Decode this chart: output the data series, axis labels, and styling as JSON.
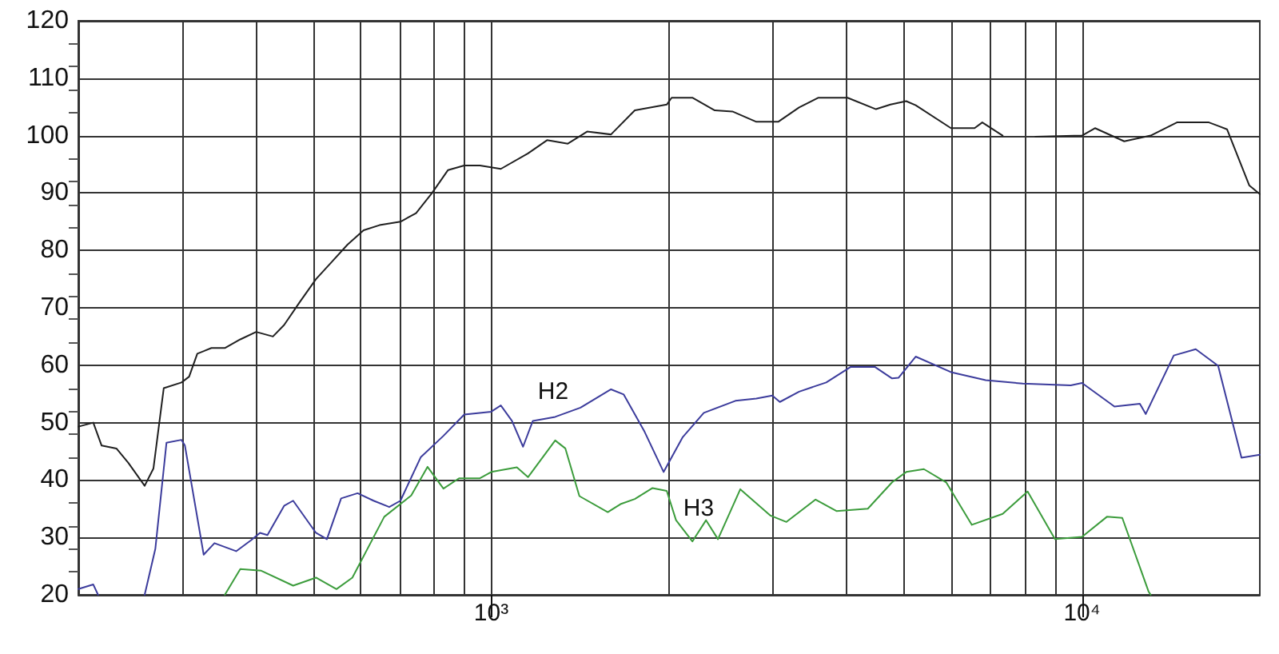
{
  "chart_data": {
    "type": "line",
    "log": "x",
    "grid": true,
    "marker": "none",
    "line_style": "solid",
    "xlim": [
      200,
      20000
    ],
    "ylim": [
      20,
      120
    ],
    "xticks": [
      {
        "value": 300,
        "label": null
      },
      {
        "value": 400,
        "label": null
      },
      {
        "value": 500,
        "label": null
      },
      {
        "value": 600,
        "label": null
      },
      {
        "value": 700,
        "label": null
      },
      {
        "value": 800,
        "label": null
      },
      {
        "value": 900,
        "label": null
      },
      {
        "value": 1000,
        "label": "10³"
      },
      {
        "value": 2000,
        "label": null
      },
      {
        "value": 3000,
        "label": null
      },
      {
        "value": 4000,
        "label": null
      },
      {
        "value": 5000,
        "label": null
      },
      {
        "value": 6000,
        "label": null
      },
      {
        "value": 7000,
        "label": null
      },
      {
        "value": 8000,
        "label": null
      },
      {
        "value": 9000,
        "label": null
      },
      {
        "value": 10000,
        "label": "10⁴"
      }
    ],
    "yticks": [
      20,
      30,
      40,
      50,
      60,
      70,
      80,
      90,
      100,
      110,
      120
    ],
    "annotations": [
      "H2",
      "H3"
    ],
    "series": [
      {
        "color": "#202020",
        "x": [
          200,
          212,
          219,
          232,
          243,
          259,
          268,
          279,
          299,
          308,
          318,
          336,
          354,
          376,
          400,
          427,
          446,
          474,
          505,
          537,
          571,
          608,
          647,
          702,
          746,
          794,
          845,
          900,
          957,
          1038,
          1154,
          1243,
          1348,
          1453,
          1595,
          1750,
          1982,
          2020,
          2190,
          2390,
          2560,
          2810,
          3060,
          3320,
          3580,
          4010,
          4480,
          4740,
          5040,
          5230,
          6000,
          6580,
          6780,
          7340,
          7800,
          8340,
          10000,
          10520,
          11790,
          13070,
          14480,
          16400,
          17600,
          19200,
          20000
        ],
        "values": [
          49.3,
          50,
          46,
          45.5,
          43,
          39,
          42,
          56,
          57,
          58,
          62,
          63,
          63,
          64.5,
          65.8,
          65,
          67,
          71,
          75,
          78,
          81,
          83.5,
          84.4,
          85,
          86.5,
          90,
          94,
          94.8,
          94.8,
          94.2,
          96.9,
          99.2,
          98.6,
          100.7,
          100.2,
          104.4,
          105.4,
          106.6,
          106.6,
          104.4,
          104.2,
          102.4,
          102.4,
          104.9,
          106.6,
          106.6,
          104.6,
          105.4,
          106,
          105.3,
          101.3,
          101.3,
          102.3,
          100,
          null,
          99.8,
          100,
          101.3,
          99,
          100,
          102.3,
          102.3,
          101.1,
          91.3,
          89.8
        ]
      },
      {
        "color": "#3c3c9c",
        "x": [
          200,
          212,
          216,
          240,
          259,
          270,
          282,
          299,
          303,
          326,
          340,
          370,
          392,
          406,
          418,
          446,
          462,
          505,
          527,
          557,
          594,
          632,
          672,
          702,
          760,
          830,
          900,
          1000,
          1038,
          1084,
          1132,
          1176,
          1283,
          1416,
          1595,
          1676,
          1818,
          1958,
          2110,
          2290,
          2590,
          2810,
          2990,
          3080,
          3320,
          3690,
          4060,
          4460,
          4770,
          4890,
          5230,
          6000,
          6870,
          7940,
          9570,
          10000,
          11350,
          12530,
          12820,
          14300,
          15580,
          17000,
          18620,
          20000
        ],
        "values": [
          21,
          21.8,
          20,
          null,
          20,
          28,
          46.5,
          47,
          46,
          27,
          29,
          27.6,
          29.5,
          30.8,
          30.4,
          35.5,
          36.4,
          30.8,
          29.7,
          36.8,
          37.7,
          36.4,
          35.3,
          36.4,
          44,
          47.7,
          51.4,
          51.9,
          53,
          50.3,
          45.8,
          50.3,
          51,
          52.6,
          55.8,
          54.9,
          48.4,
          41.4,
          47.5,
          51.7,
          53.8,
          54.2,
          54.7,
          53.6,
          55.4,
          57,
          59.7,
          59.7,
          57.7,
          57.8,
          61.5,
          58.8,
          57.4,
          56.8,
          56.5,
          56.9,
          52.8,
          53.3,
          51.5,
          61.7,
          62.8,
          59.9,
          43.9,
          44.4
        ]
      },
      {
        "color": "#3c9c3c",
        "x": [
          354,
          376,
          408,
          462,
          505,
          547,
          582,
          659,
          732,
          780,
          830,
          882,
          957,
          1000,
          1105,
          1154,
          1283,
          1335,
          1410,
          1575,
          1655,
          1750,
          1875,
          1982,
          2055,
          2190,
          2310,
          2420,
          2640,
          2970,
          3160,
          3540,
          3840,
          4340,
          4770,
          5040,
          5400,
          5890,
          6510,
          7340,
          8090,
          9000,
          10000,
          11020,
          11700,
          12960,
          13070
        ],
        "values": [
          20,
          24.5,
          24.2,
          21.6,
          23,
          21,
          23,
          33.6,
          37.3,
          42.3,
          38.5,
          40.3,
          40.3,
          41.4,
          42.2,
          40.5,
          46.9,
          45.5,
          37.2,
          34.4,
          35.8,
          36.7,
          38.6,
          38.1,
          33,
          29.3,
          33,
          29.7,
          38.4,
          33.8,
          32.7,
          36.6,
          34.6,
          35,
          39.6,
          41.4,
          41.9,
          39.6,
          32.2,
          34.1,
          38,
          29.7,
          30.1,
          33.6,
          33.4,
          20.6,
          20
        ]
      }
    ]
  }
}
